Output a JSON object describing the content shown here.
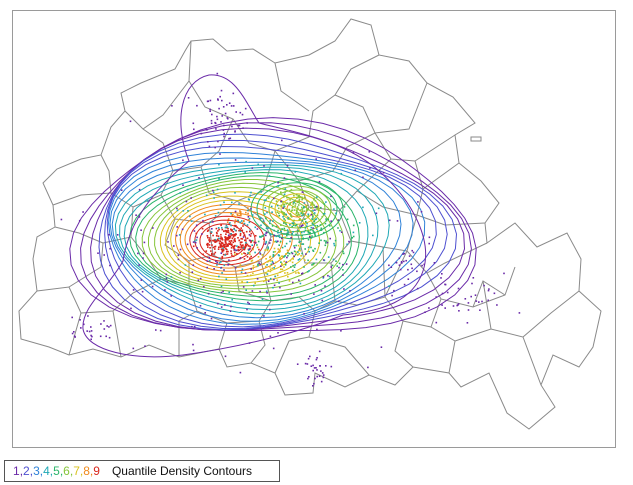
{
  "map": {
    "colors": {
      "boundary": "#8a8a8a",
      "frame": "#9a9a9a"
    }
  },
  "legend": {
    "title": "Quantile Density Contours",
    "levels": [
      {
        "label": "1",
        "color": "#6a2aa8"
      },
      {
        "label": "2",
        "color": "#4d4fd0"
      },
      {
        "label": "3",
        "color": "#2f82d8"
      },
      {
        "label": "4",
        "color": "#1fa8b5"
      },
      {
        "label": "5",
        "color": "#2bb56a"
      },
      {
        "label": "6",
        "color": "#86c53a"
      },
      {
        "label": "7",
        "color": "#d9c21e"
      },
      {
        "label": "8",
        "color": "#f08a1c"
      },
      {
        "label": "9",
        "color": "#d8261c"
      }
    ]
  }
}
